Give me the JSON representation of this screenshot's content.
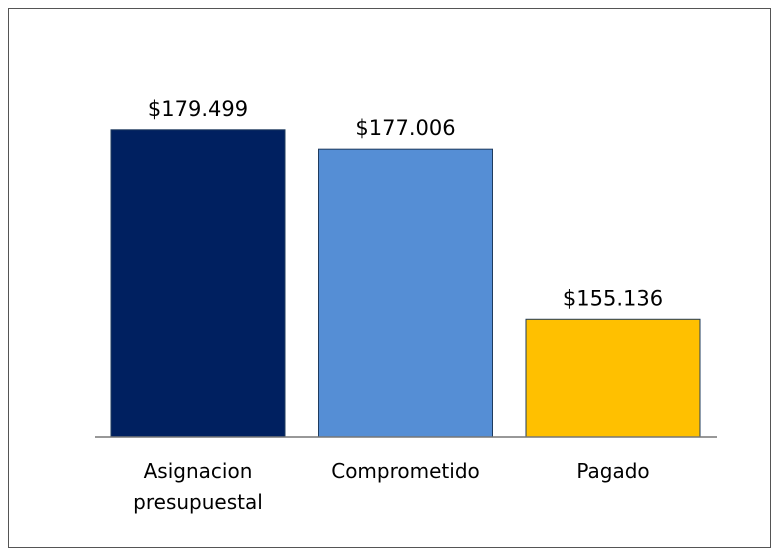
{
  "chart_data": {
    "type": "bar",
    "categories": [
      "Asignacion presupuestal",
      "Comprometido",
      "Pagado"
    ],
    "values": [
      179499,
      177006,
      155136
    ],
    "value_labels": [
      "$179.499",
      "$177.006",
      "$155.136"
    ],
    "colors": [
      "#002060",
      "#558ed5",
      "#ffc000"
    ],
    "ylim": [
      140000,
      185000
    ]
  }
}
